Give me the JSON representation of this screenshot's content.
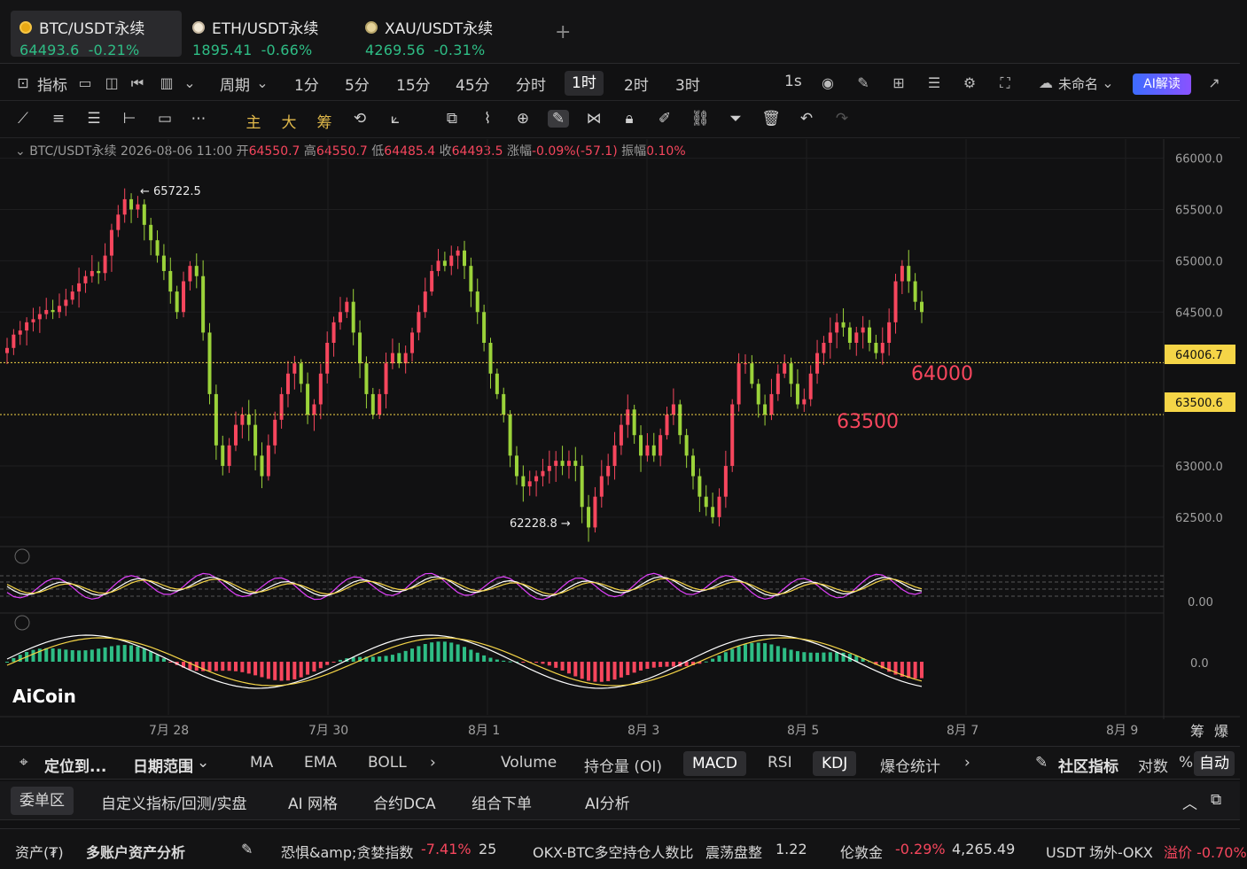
{
  "tabs": [
    {
      "name": "BTC/USDT永续",
      "price": "64493.6",
      "change": "-0.21%",
      "active": true
    },
    {
      "name": "ETH/USDT永续",
      "price": "1895.41",
      "change": "-0.66%"
    },
    {
      "name": "XAU/USDT永续",
      "price": "4269.56",
      "change": "-0.31%"
    }
  ],
  "toolbar": {
    "indicator": "指标",
    "period": "周期",
    "intervals": [
      "1分",
      "5分",
      "15分",
      "45分",
      "分时",
      "1时",
      "2时",
      "3时"
    ],
    "active_interval": "1时",
    "interval_1s": "1s",
    "layout_name": "未命名",
    "ai_label": "AI解读"
  },
  "drawbar": {
    "zhu": "主",
    "da": "大",
    "chou": "筹"
  },
  "ohlc": {
    "symbol": "BTC/USDT永续",
    "time": "2026-08-06 11:00",
    "open_label": "开",
    "open": "64550.7",
    "high_label": "高",
    "high": "64550.7",
    "low_label": "低",
    "low": "64485.4",
    "close_label": "收",
    "close": "64493.5",
    "chg_label": "涨幅",
    "chg": "-0.09%(-57.1)",
    "amp_label": "振幅",
    "amp": "0.10%"
  },
  "chart_data": {
    "type": "candlestick",
    "y_ticks": [
      "66000.0",
      "65500.0",
      "65000.0",
      "64500.0",
      "63000.0",
      "62500.0"
    ],
    "ylim": [
      62300,
      66100
    ],
    "x_ticks": [
      "7月 28",
      "7月 30",
      "8月 1",
      "8月 3",
      "8月 5",
      "8月 7",
      "8月 9"
    ],
    "high_marker": "← 65722.5",
    "low_marker": "62228.8 →",
    "horizontal_lines": [
      {
        "value": 64006.7,
        "label": "64006.7",
        "note": "64000"
      },
      {
        "value": 63500.6,
        "label": "63500.6",
        "note": "63500"
      }
    ],
    "closes": [
      64150,
      64280,
      64320,
      64400,
      64430,
      64480,
      64520,
      64500,
      64560,
      64620,
      64700,
      64780,
      64850,
      64900,
      64880,
      65050,
      65300,
      65450,
      65600,
      65500,
      65550,
      65350,
      65200,
      65050,
      64900,
      64700,
      64500,
      64800,
      64950,
      64850,
      64300,
      63700,
      63200,
      63000,
      63200,
      63400,
      63500,
      63400,
      63100,
      62900,
      63200,
      63450,
      63700,
      63900,
      64000,
      63800,
      63500,
      63600,
      63900,
      64200,
      64400,
      64500,
      64600,
      64300,
      64000,
      63700,
      63500,
      63700,
      64000,
      64100,
      64000,
      64100,
      64300,
      64500,
      64700,
      64900,
      65000,
      64950,
      65050,
      65100,
      64950,
      64700,
      64500,
      64200,
      63900,
      63700,
      63500,
      63100,
      62900,
      62800,
      62850,
      62900,
      62950,
      63000,
      63050,
      63000,
      63050,
      63000,
      62600,
      62400,
      62700,
      62900,
      63000,
      63200,
      63400,
      63550,
      63300,
      63100,
      63200,
      63100,
      63300,
      63500,
      63600,
      63300,
      63100,
      62900,
      62700,
      62600,
      62500,
      62700,
      63000,
      63600,
      64000,
      64000,
      63800,
      63600,
      63500,
      63700,
      63900,
      64000,
      63800,
      63600,
      63650,
      63900,
      64100,
      64200,
      64300,
      64400,
      64350,
      64200,
      64300,
      64350,
      64200,
      64100,
      64200,
      64400,
      64800,
      64950,
      64800,
      64600,
      64500
    ]
  },
  "kdj_label": "0.00",
  "macd_label": "0.0",
  "logo": "AiCoin",
  "chou_label": "筹",
  "bao_label": "爆",
  "indicator_bar": {
    "locate": "定位到...",
    "date_range": "日期范围",
    "main_inds": [
      "MA",
      "EMA",
      "BOLL"
    ],
    "sub_inds": [
      "Volume",
      "持仓量 (OI)",
      "MACD",
      "RSI",
      "KDJ",
      "爆仓统计"
    ],
    "active_sub": [
      "MACD",
      "KDJ"
    ],
    "community": "社区指标",
    "log": "对数",
    "pct": "%",
    "auto": "自动"
  },
  "panel_tabs": [
    "委单区",
    "自定义指标/回测/实盘",
    "AI 网格",
    "合约DCA",
    "组合下单",
    "AI分析"
  ],
  "status": {
    "assets": "资产(₮)",
    "multi": "多账户资产分析",
    "fear_label": "恐惧&amp;贪婪指数",
    "fear_chg": "-7.41%",
    "fear_val": "25",
    "ls_label": "OKX-BTC多空持仓人数比",
    "ls_state": "震荡盘整",
    "ls_val": "1.22",
    "gold_label": "伦敦金",
    "gold_chg": "-0.29%",
    "gold_val": "4,265.49",
    "usdt_label": "USDT 场外-OKX",
    "premium": "溢价 -0.70%"
  }
}
